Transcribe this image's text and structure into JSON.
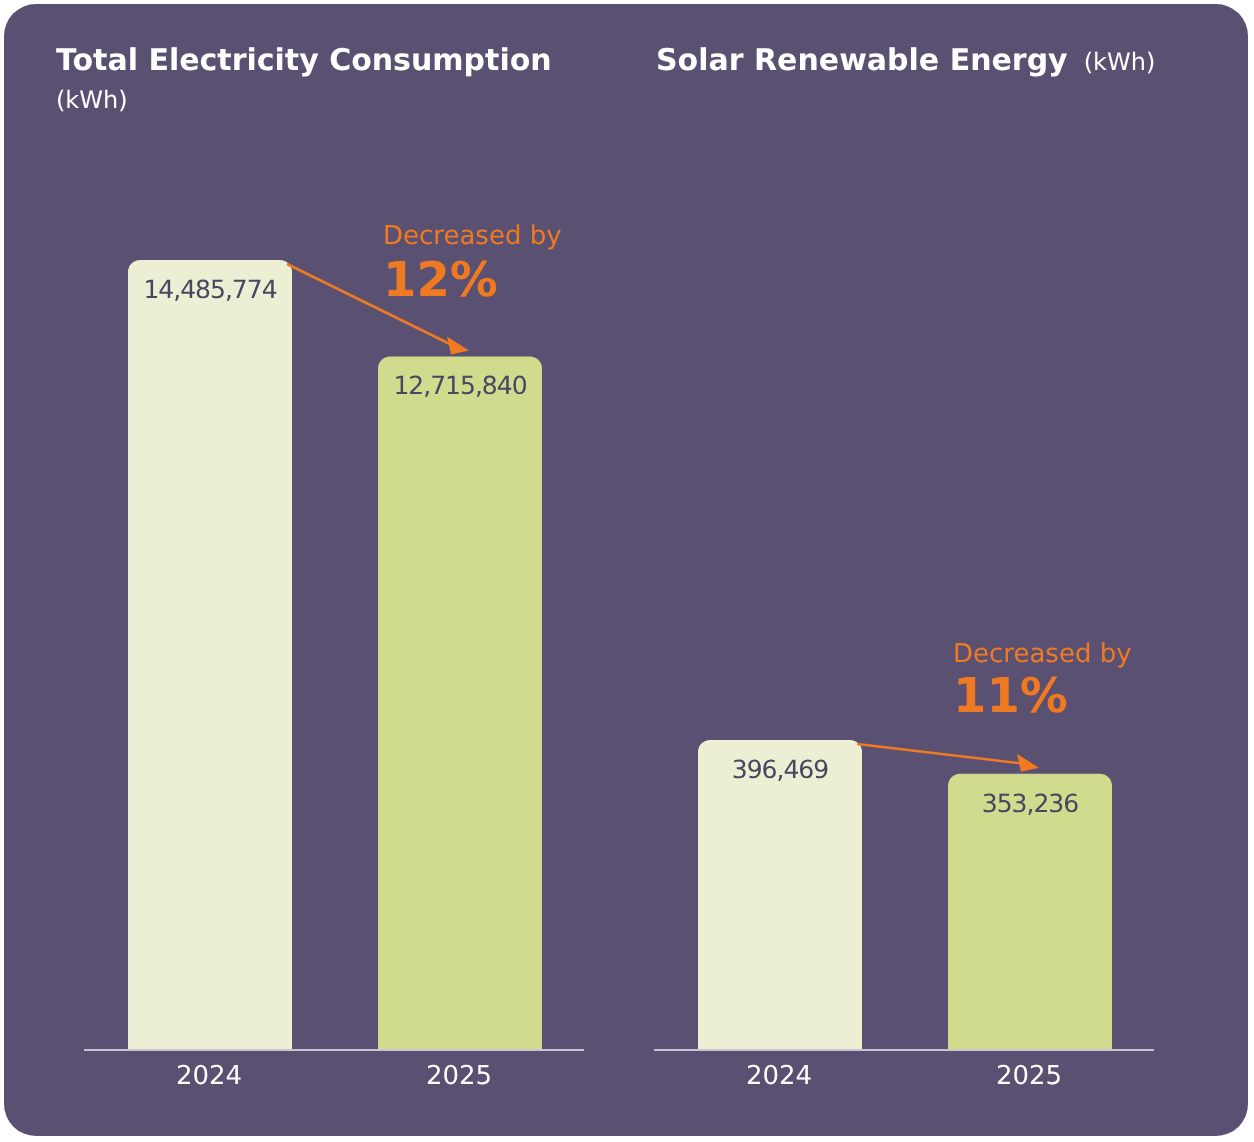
{
  "chart_data": [
    {
      "type": "bar",
      "title": "Total Electricity Consumption",
      "subtitle": "(kWh)",
      "categories": [
        "2024",
        "2025"
      ],
      "values": [
        14485774,
        12715840
      ],
      "value_labels": [
        "14,485,774",
        "12,715,840"
      ],
      "colors": [
        "#ecefd4",
        "#d0db8e"
      ],
      "tick_labels": "x",
      "annotations": [
        "Decreased by",
        "12%"
      ]
    },
    {
      "type": "bar",
      "title": "Solar Renewable Energy",
      "subtitle": "(kWh)",
      "categories": [
        "2024",
        "2025"
      ],
      "values": [
        396469,
        353236
      ],
      "value_labels": [
        "396,469",
        "353,236"
      ],
      "colors": [
        "#ecefd4",
        "#d0db8e"
      ],
      "tick_labels": "x",
      "annotations": [
        "Decreased by",
        "11%"
      ]
    }
  ]
}
